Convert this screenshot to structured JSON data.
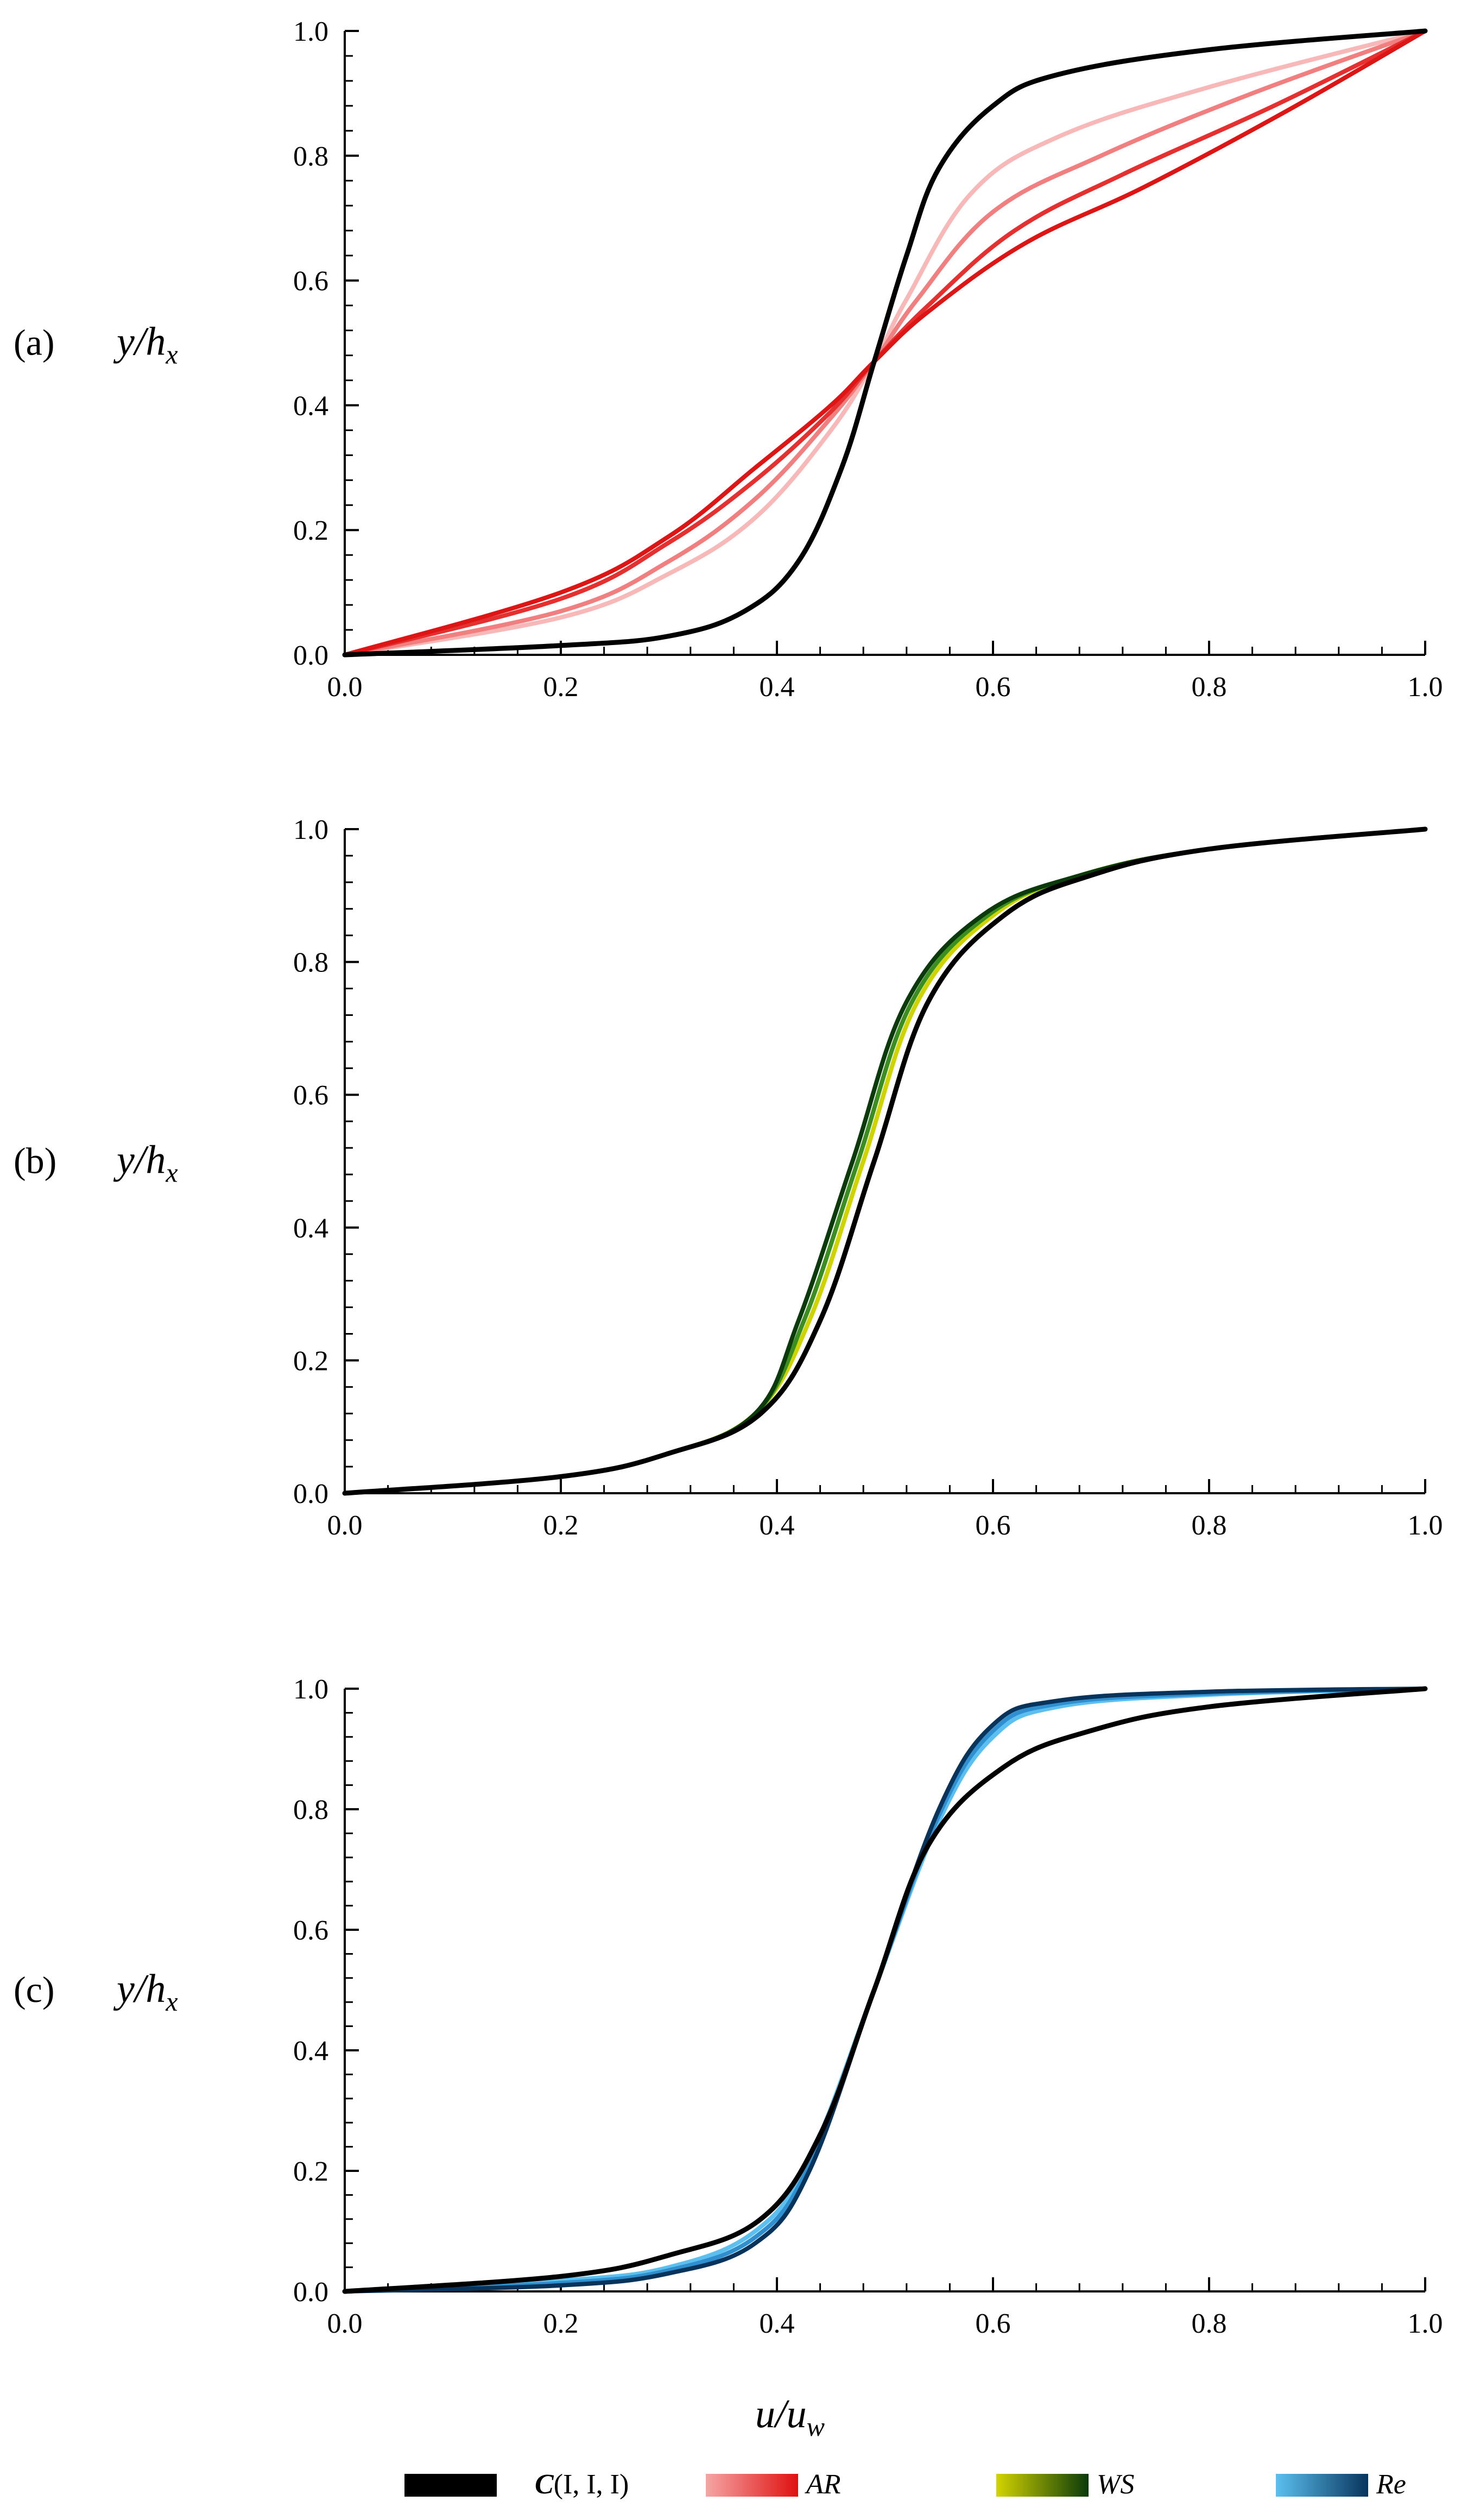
{
  "figure": {
    "xlabel": "u/u_w",
    "legend": [
      {
        "key": "ctrl",
        "label": "C(I, I, I)",
        "colors": [
          "#000000",
          "#000000"
        ]
      },
      {
        "key": "ar",
        "label": "AR",
        "colors": [
          "#f6a5a5",
          "#e01010"
        ]
      },
      {
        "key": "ws",
        "label": "WS",
        "colors": [
          "#d4d400",
          "#0a3a0a"
        ]
      },
      {
        "key": "re",
        "label": "Re",
        "colors": [
          "#5bc0f0",
          "#08345c"
        ]
      }
    ]
  },
  "chart_data": [
    {
      "type": "line",
      "panel_label": "(a)",
      "ylabel": "y/h_x",
      "xlabel": "",
      "xlim": [
        0,
        1
      ],
      "ylim": [
        0,
        1
      ],
      "xticks": [
        "0.0",
        "0.2",
        "0.4",
        "0.6",
        "0.8",
        "1.0"
      ],
      "yticks": [
        "0.0",
        "0.2",
        "0.4",
        "0.6",
        "0.8",
        "1.0"
      ],
      "series": [
        {
          "name": "AR 1",
          "color": "#f8b8b8",
          "y": [
            0,
            0.06,
            0.13,
            0.22,
            0.36,
            0.47,
            0.57,
            0.74,
            0.83,
            0.91,
            1
          ],
          "x": [
            0,
            0.2,
            0.3,
            0.38,
            0.45,
            0.49,
            0.52,
            0.58,
            0.66,
            0.8,
            1
          ]
        },
        {
          "name": "AR 2",
          "color": "#f27f7f",
          "y": [
            0,
            0.07,
            0.15,
            0.25,
            0.38,
            0.47,
            0.57,
            0.71,
            0.8,
            0.9,
            1
          ],
          "x": [
            0,
            0.2,
            0.3,
            0.38,
            0.45,
            0.49,
            0.53,
            0.6,
            0.7,
            0.84,
            1
          ]
        },
        {
          "name": "AR 3",
          "color": "#e63030",
          "y": [
            0,
            0.09,
            0.18,
            0.28,
            0.39,
            0.47,
            0.56,
            0.68,
            0.77,
            0.88,
            1
          ],
          "x": [
            0,
            0.2,
            0.3,
            0.38,
            0.45,
            0.49,
            0.54,
            0.62,
            0.72,
            0.86,
            1
          ]
        },
        {
          "name": "AR 4",
          "color": "#dd1515",
          "y": [
            0,
            0.1,
            0.19,
            0.3,
            0.4,
            0.47,
            0.55,
            0.66,
            0.75,
            0.87,
            1
          ],
          "x": [
            0,
            0.2,
            0.3,
            0.38,
            0.45,
            0.49,
            0.54,
            0.63,
            0.74,
            0.87,
            1
          ]
        },
        {
          "name": "C(I, I, I)",
          "color": "#000000",
          "y": [
            0,
            0.015,
            0.03,
            0.07,
            0.15,
            0.3,
            0.47,
            0.64,
            0.78,
            0.88,
            0.93,
            0.97,
            1
          ],
          "x": [
            0,
            0.2,
            0.3,
            0.37,
            0.42,
            0.46,
            0.49,
            0.52,
            0.55,
            0.6,
            0.66,
            0.8,
            1
          ]
        }
      ]
    },
    {
      "type": "line",
      "panel_label": "(b)",
      "ylabel": "y/h_x",
      "xlabel": "",
      "xlim": [
        0,
        1
      ],
      "ylim": [
        0,
        1
      ],
      "xticks": [
        "0.0",
        "0.2",
        "0.4",
        "0.6",
        "0.8",
        "1.0"
      ],
      "yticks": [
        "0.0",
        "0.2",
        "0.4",
        "0.6",
        "0.8",
        "1.0"
      ],
      "series": [
        {
          "name": "WS 1",
          "color": "#cfd400",
          "y": [
            0,
            0.025,
            0.06,
            0.12,
            0.26,
            0.5,
            0.74,
            0.87,
            0.93,
            0.97,
            1
          ],
          "x": [
            0,
            0.2,
            0.3,
            0.38,
            0.43,
            0.48,
            0.53,
            0.6,
            0.68,
            0.8,
            1
          ]
        },
        {
          "name": "WS 2",
          "color": "#3a8f20",
          "y": [
            0,
            0.025,
            0.06,
            0.12,
            0.26,
            0.5,
            0.74,
            0.87,
            0.93,
            0.97,
            1
          ],
          "x": [
            0,
            0.2,
            0.3,
            0.38,
            0.425,
            0.475,
            0.525,
            0.595,
            0.68,
            0.8,
            1
          ]
        },
        {
          "name": "WS 3",
          "color": "#0b3a0b",
          "y": [
            0,
            0.025,
            0.06,
            0.12,
            0.26,
            0.5,
            0.74,
            0.87,
            0.93,
            0.97,
            1
          ],
          "x": [
            0,
            0.2,
            0.3,
            0.38,
            0.42,
            0.47,
            0.52,
            0.59,
            0.68,
            0.8,
            1
          ]
        },
        {
          "name": "C(I, I, I)",
          "color": "#000000",
          "y": [
            0,
            0.025,
            0.06,
            0.12,
            0.26,
            0.5,
            0.74,
            0.87,
            0.93,
            0.97,
            1
          ],
          "x": [
            0,
            0.2,
            0.3,
            0.385,
            0.44,
            0.49,
            0.54,
            0.61,
            0.69,
            0.8,
            1
          ]
        }
      ]
    },
    {
      "type": "line",
      "panel_label": "(c)",
      "ylabel": "y/h_x",
      "xlabel": "u/u_w",
      "xlim": [
        0,
        1
      ],
      "ylim": [
        0,
        1
      ],
      "xticks": [
        "0.0",
        "0.2",
        "0.4",
        "0.6",
        "0.8",
        "1.0"
      ],
      "yticks": [
        "0.0",
        "0.2",
        "0.4",
        "0.6",
        "0.8",
        "1.0"
      ],
      "series": [
        {
          "name": "Re 1",
          "color": "#5bc0f0",
          "y": [
            0,
            0.018,
            0.04,
            0.1,
            0.22,
            0.5,
            0.78,
            0.92,
            0.97,
            0.99,
            1
          ],
          "x": [
            0,
            0.2,
            0.3,
            0.38,
            0.43,
            0.49,
            0.55,
            0.6,
            0.66,
            0.8,
            1
          ]
        },
        {
          "name": "Re 2",
          "color": "#2f8fcf",
          "y": [
            0,
            0.014,
            0.035,
            0.09,
            0.21,
            0.5,
            0.79,
            0.93,
            0.975,
            0.992,
            1
          ],
          "x": [
            0,
            0.2,
            0.3,
            0.38,
            0.43,
            0.49,
            0.55,
            0.6,
            0.66,
            0.8,
            1
          ]
        },
        {
          "name": "Re 3",
          "color": "#08345c",
          "y": [
            0,
            0.01,
            0.03,
            0.08,
            0.2,
            0.5,
            0.8,
            0.94,
            0.98,
            0.995,
            1
          ],
          "x": [
            0,
            0.2,
            0.3,
            0.38,
            0.43,
            0.49,
            0.55,
            0.6,
            0.66,
            0.8,
            1
          ]
        },
        {
          "name": "C(I, I, I)",
          "color": "#000000",
          "y": [
            0,
            0.025,
            0.06,
            0.12,
            0.26,
            0.5,
            0.74,
            0.87,
            0.93,
            0.97,
            1
          ],
          "x": [
            0,
            0.2,
            0.3,
            0.385,
            0.44,
            0.49,
            0.54,
            0.61,
            0.69,
            0.8,
            1
          ]
        }
      ]
    }
  ]
}
